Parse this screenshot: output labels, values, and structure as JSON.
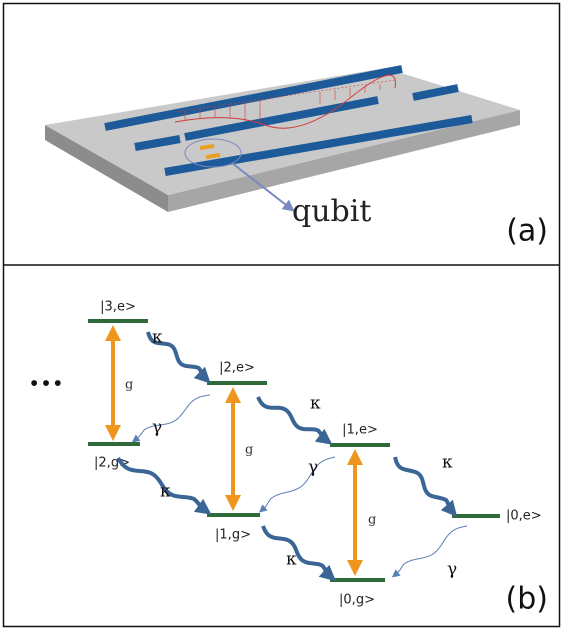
{
  "panel_a": {
    "label": "(a)",
    "annotation": "qubit"
  },
  "panel_b": {
    "label": "(b)",
    "ellipsis": "•••",
    "states": [
      "|3,e>",
      "|2,e>",
      "|1,e>",
      "|0,e>",
      "|2,g>",
      "|1,g>",
      "|0,g>"
    ],
    "coupling": [
      "g",
      "g",
      "g"
    ],
    "decay": [
      "κ",
      "κ",
      "κ",
      "κ",
      "κ"
    ],
    "emission": [
      "γ",
      "γ",
      "γ"
    ]
  }
}
